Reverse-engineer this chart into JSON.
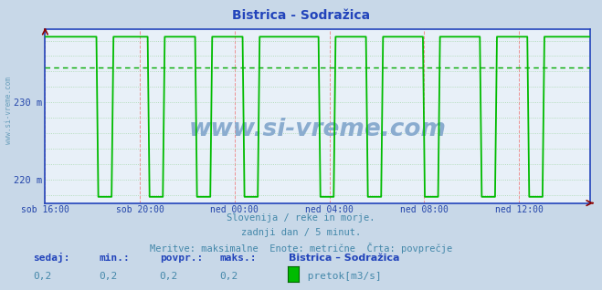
{
  "title_text": "Bistrica - Sodražica",
  "bg_color": "#c8d8e8",
  "plot_bg_color": "#e8f0f8",
  "border_color": "#2244bb",
  "line_color": "#00bb00",
  "avg_line_color": "#00aa00",
  "grid_v_color": "#ee8888",
  "grid_h_color": "#88cc88",
  "ytick_vals": [
    220,
    230
  ],
  "ytick_labels": [
    "220 m",
    "230 m"
  ],
  "ylim_min": 217.0,
  "ylim_max": 239.5,
  "xtick_labels": [
    "sob 16:00",
    "sob 20:00",
    "ned 00:00",
    "ned 04:00",
    "ned 08:00",
    "ned 12:00"
  ],
  "xtick_positions": [
    0,
    240,
    480,
    720,
    960,
    1200
  ],
  "xlim_min": 0,
  "xlim_max": 1380,
  "avg_value": 234.5,
  "high_value": 238.5,
  "low_value": 217.8,
  "subtitle1": "Slovenija / reke in morje.",
  "subtitle2": "zadnji dan / 5 minut.",
  "subtitle3": "Meritve: maksimalne  Enote: metrične  Črta: povprečje",
  "legend_station": "Bistrica – Sodražica",
  "legend_label": " pretok[m3/s]",
  "stat_labels": [
    "sedaj:",
    "min.:",
    "povpr.:",
    "maks.:"
  ],
  "stat_values": [
    "0,2",
    "0,2",
    "0,2",
    "0,2"
  ],
  "text_color_blue": "#2244aa",
  "text_color_teal": "#4488aa",
  "watermark": "www.si-vreme.com",
  "watermark_color": "#8aaccf",
  "side_watermark": "www.si-vreme.com"
}
